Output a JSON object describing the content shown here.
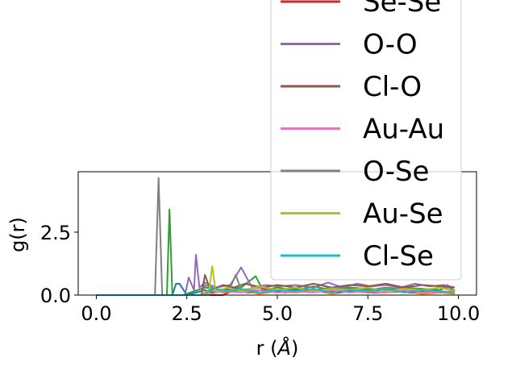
{
  "chart_data": {
    "type": "line",
    "xlabel": "r (",
    "xlabel_unit": "Å",
    "xlabel_close": ")",
    "ylabel": "g(r)",
    "xlim": [
      -0.5,
      10.5
    ],
    "ylim": [
      0,
      4.9
    ],
    "xticks": [
      0.0,
      2.5,
      5.0,
      7.5,
      10.0
    ],
    "xtick_labels": [
      "0.0",
      "2.5",
      "5.0",
      "7.5",
      "10.0"
    ],
    "yticks": [
      0.0,
      2.5
    ],
    "ytick_labels": [
      "0.0",
      "2.5"
    ],
    "legend_placement": "upper right",
    "series": [
      {
        "name": "",
        "color": "#1f77b4",
        "x": [
          0,
          2.1,
          2.2,
          2.3,
          2.5,
          3.0,
          3.2,
          3.6,
          4.0,
          4.5,
          5.0,
          5.5,
          6.0,
          6.5,
          7.0,
          7.5,
          8.0,
          8.5,
          9.0,
          9.5,
          9.9
        ],
        "y": [
          0,
          0,
          0.45,
          0.45,
          0,
          0.2,
          0.1,
          0.25,
          0.15,
          0.2,
          0.1,
          0.25,
          0.2,
          0.15,
          0.2,
          0.1,
          0.25,
          0.15,
          0.2,
          0.1,
          0.15
        ]
      },
      {
        "name": "",
        "color": "#ff7f0e",
        "x": [
          0,
          2.9,
          3.1,
          3.5,
          4.0,
          4.5,
          5.0,
          5.5,
          6.0,
          6.5,
          7.0,
          7.5,
          8.0,
          8.5,
          9.0,
          9.5,
          9.9
        ],
        "y": [
          0,
          0,
          0.2,
          0.1,
          0.2,
          0.05,
          0.15,
          0.1,
          0.2,
          0.05,
          0.15,
          0.1,
          0.1,
          0.15,
          0.05,
          0.1,
          0.05
        ]
      },
      {
        "name": "",
        "color": "#2ca02c",
        "x": [
          0,
          1.95,
          2.02,
          2.1,
          2.4,
          3.0,
          3.5,
          4.0,
          4.4,
          4.6,
          5.0,
          5.5,
          6.0,
          6.5,
          7.0,
          7.5,
          8.0,
          8.5,
          9.0,
          9.5,
          9.7,
          9.9
        ],
        "y": [
          0,
          0,
          3.4,
          0,
          0,
          0.3,
          0.2,
          0.3,
          0.75,
          0.2,
          0.3,
          0.2,
          0.35,
          0.2,
          0.3,
          0.25,
          0.2,
          0.3,
          0.25,
          0.2,
          0.4,
          0.15
        ]
      },
      {
        "name": "Se-Se",
        "color": "#d62728",
        "x": [
          0,
          3.5,
          3.8,
          4.2,
          4.7,
          5.2,
          5.7,
          6.2,
          6.7,
          7.2,
          7.7,
          8.2,
          8.7,
          9.2,
          9.9
        ],
        "y": [
          0,
          0,
          0.2,
          0.1,
          0.25,
          0.1,
          0.2,
          0.15,
          0.1,
          0.2,
          0.1,
          0.15,
          0.1,
          0.2,
          0.1
        ]
      },
      {
        "name": "O-O",
        "color": "#9467bd",
        "x": [
          0,
          2.45,
          2.55,
          2.7,
          2.75,
          2.85,
          3.0,
          3.3,
          3.7,
          4.0,
          4.3,
          4.7,
          5.0,
          5.5,
          6.0,
          6.4,
          6.8,
          7.2,
          7.6,
          8.0,
          8.4,
          8.8,
          9.2,
          9.6,
          9.9
        ],
        "y": [
          0,
          0,
          0.7,
          0.2,
          1.6,
          0.3,
          0.5,
          0.3,
          0.4,
          1.1,
          0.3,
          0.4,
          0.35,
          0.4,
          0.3,
          0.5,
          0.3,
          0.45,
          0.35,
          0.4,
          0.3,
          0.45,
          0.35,
          0.4,
          0.3
        ]
      },
      {
        "name": "Cl-O",
        "color": "#8c564b",
        "x": [
          0,
          2.9,
          3.0,
          3.15,
          3.5,
          3.8,
          4.1,
          4.6,
          5.0,
          5.5,
          6.0,
          6.5,
          7.0,
          7.5,
          8.0,
          8.5,
          9.0,
          9.5,
          9.9
        ],
        "y": [
          0,
          0,
          0.8,
          0.2,
          0.4,
          0.3,
          0.45,
          0.3,
          0.4,
          0.3,
          0.45,
          0.3,
          0.4,
          0.35,
          0.45,
          0.3,
          0.4,
          0.35,
          0.3
        ]
      },
      {
        "name": "Au-Au",
        "color": "#e377c2",
        "x": [
          0,
          3.0,
          3.5,
          4.0,
          4.5,
          5.0,
          5.5,
          6.0,
          6.5,
          7.0,
          7.5,
          8.0,
          8.5,
          9.0,
          9.5,
          9.9
        ],
        "y": [
          0,
          0,
          0.15,
          0.1,
          0.2,
          0.1,
          0.15,
          0.1,
          0.2,
          0.1,
          0.15,
          0.1,
          0.2,
          0.1,
          0.15,
          0.1
        ]
      },
      {
        "name": "O-Se",
        "color": "#7f7f7f",
        "x": [
          0,
          1.62,
          1.72,
          1.82,
          2.9,
          3.0,
          3.4,
          3.7,
          3.85,
          4.0,
          4.5,
          5.0,
          5.5,
          6.0,
          6.5,
          7.0,
          7.5,
          8.0,
          8.5,
          9.0,
          9.5,
          9.9
        ],
        "y": [
          0,
          0,
          4.65,
          0,
          0,
          0.4,
          0.2,
          0.3,
          0.8,
          0.2,
          0.3,
          0.2,
          0.3,
          0.2,
          0.3,
          0.25,
          0.2,
          0.3,
          0.25,
          0.2,
          0.3,
          0.2
        ]
      },
      {
        "name": "Au-Se",
        "color": "#bcbd22",
        "x": [
          0,
          3.1,
          3.2,
          3.3,
          3.6,
          4.0,
          4.5,
          5.0,
          5.5,
          6.0,
          6.5,
          7.0,
          7.5,
          8.0,
          8.5,
          9.0,
          9.5,
          9.9
        ],
        "y": [
          0,
          0,
          1.15,
          0.1,
          0.3,
          0.15,
          0.35,
          0.2,
          0.3,
          0.15,
          0.25,
          0.2,
          0.3,
          0.15,
          0.25,
          0.2,
          0.3,
          0.15
        ]
      },
      {
        "name": "Cl-Se",
        "color": "#17becf",
        "x": [
          0,
          3.0,
          3.2,
          3.6,
          4.0,
          4.5,
          5.0,
          5.5,
          6.0,
          6.5,
          7.0,
          7.5,
          8.0,
          8.5,
          9.0,
          9.5,
          9.9
        ],
        "y": [
          0,
          0,
          0.3,
          0.15,
          0.25,
          0.1,
          0.2,
          0.15,
          0.25,
          0.1,
          0.2,
          0.15,
          0.25,
          0.1,
          0.2,
          0.15,
          0.1
        ]
      }
    ]
  }
}
